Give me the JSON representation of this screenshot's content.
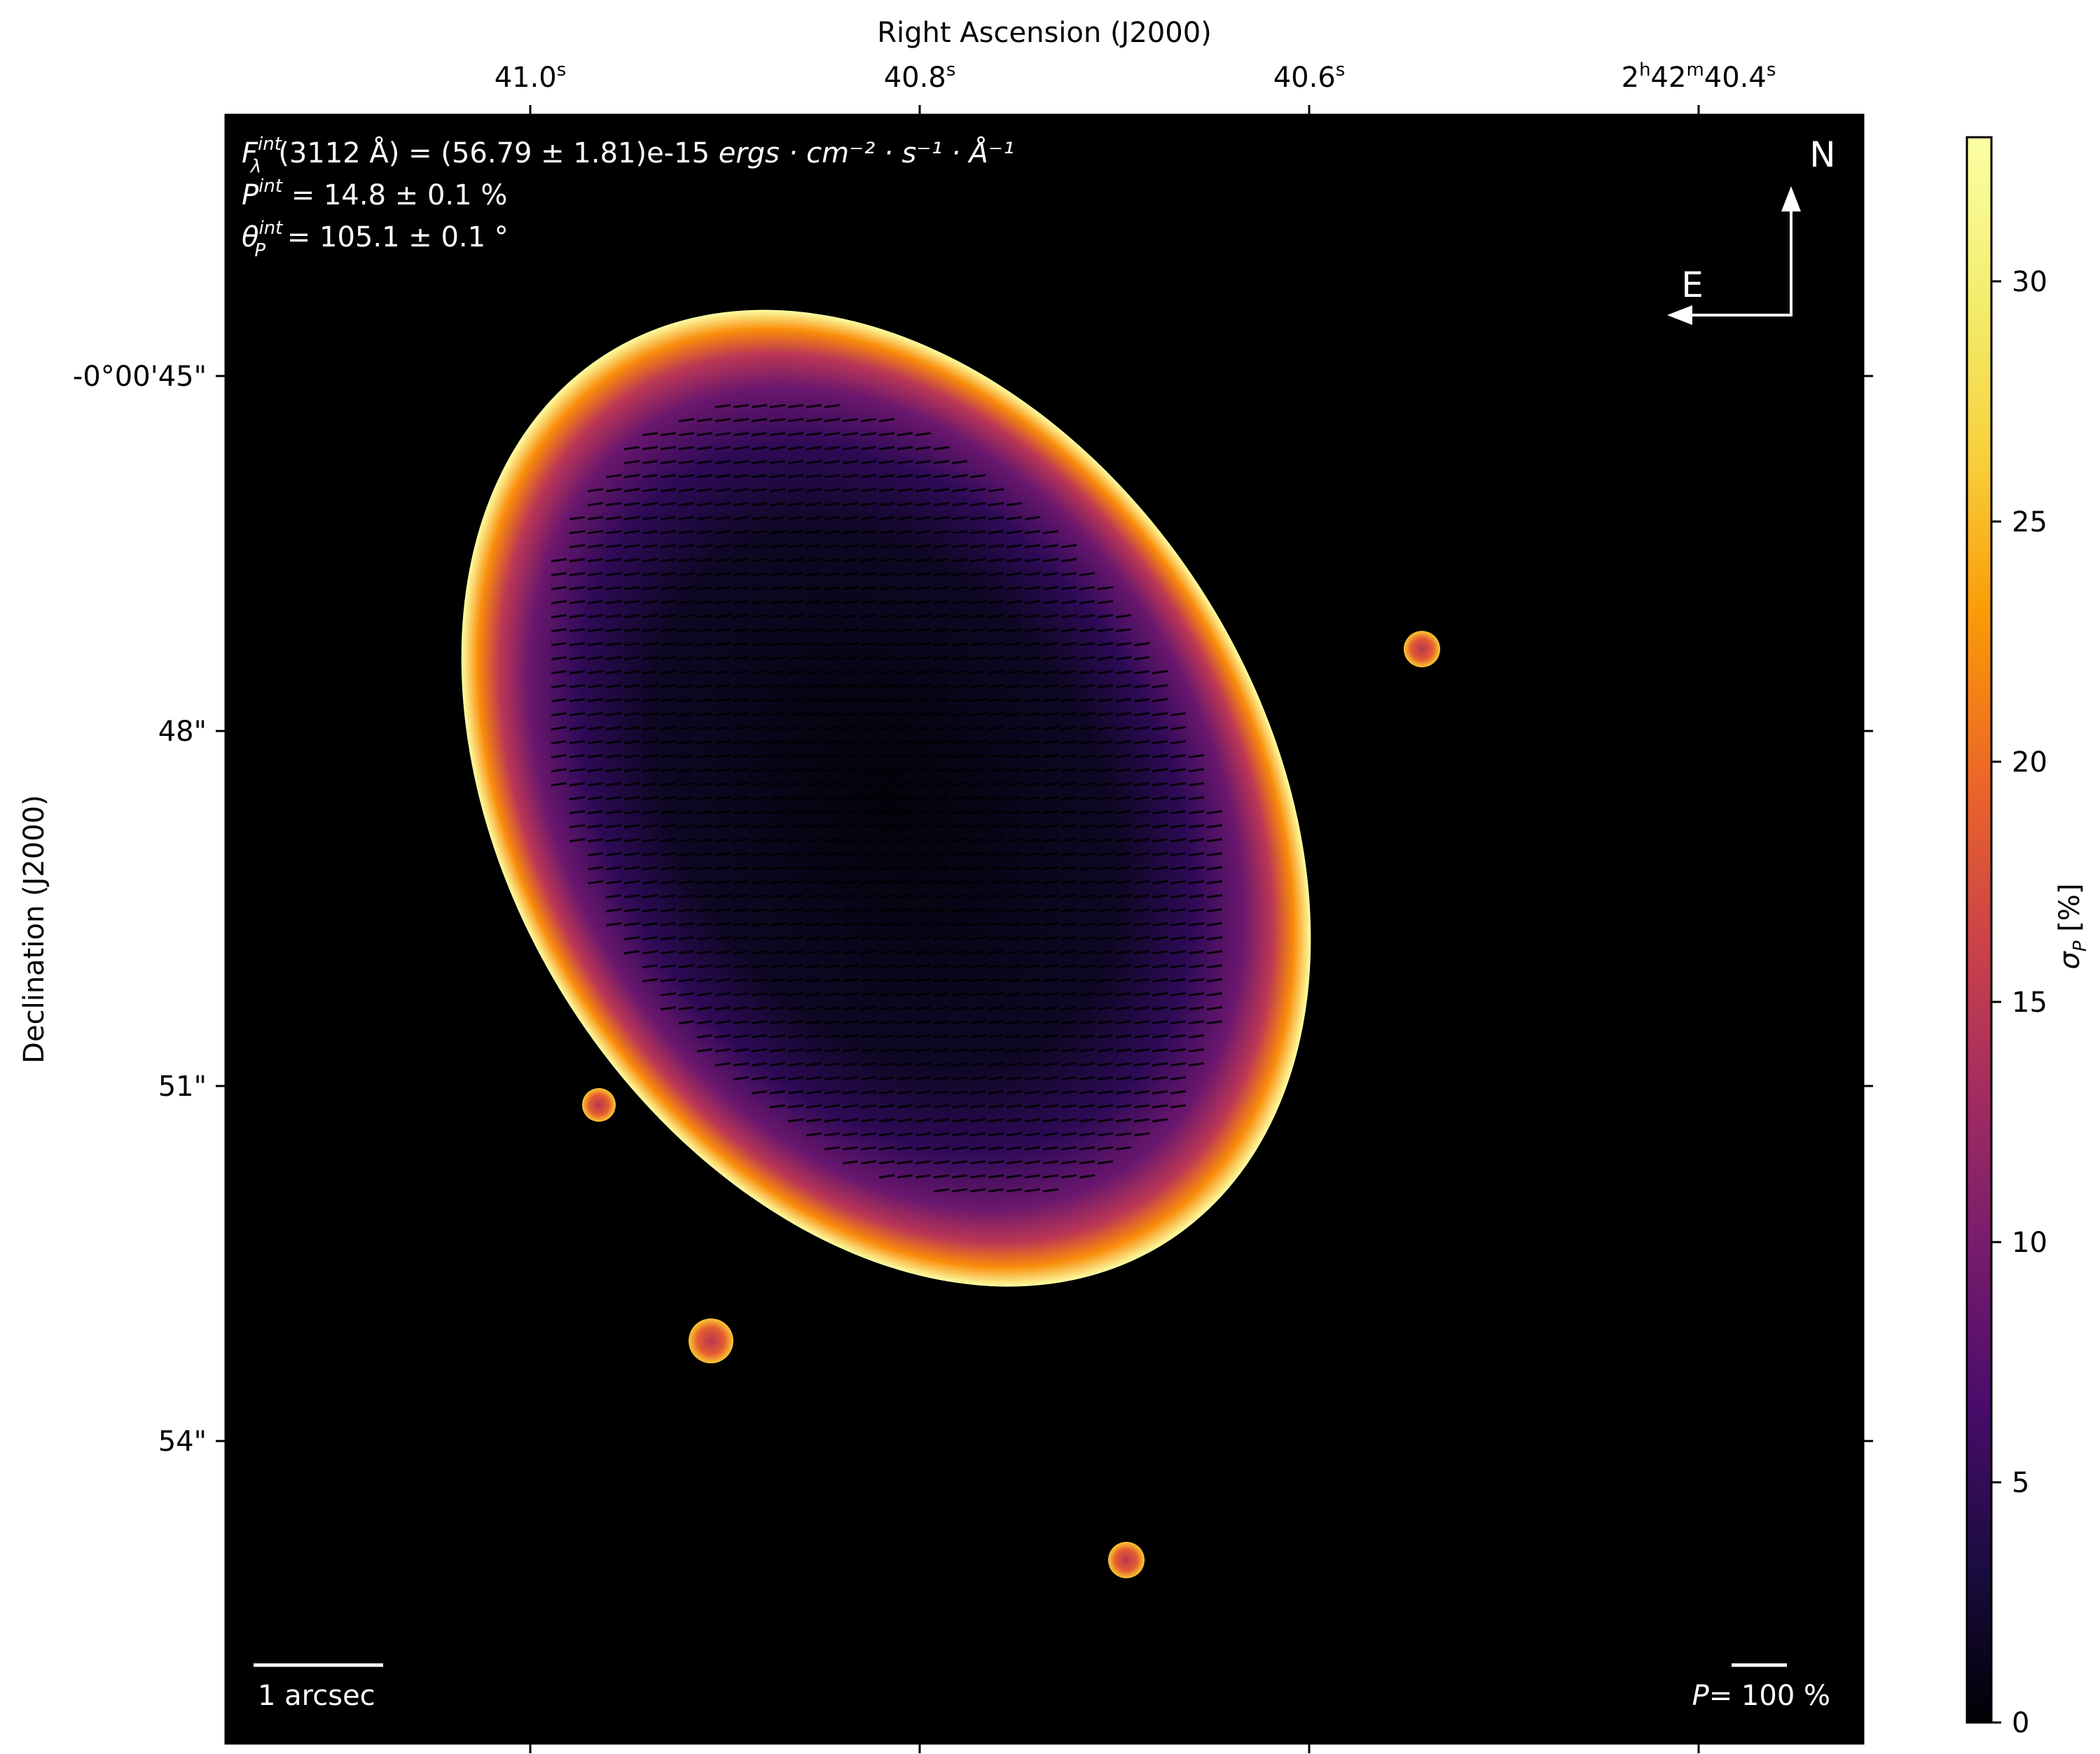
{
  "chart_data": {
    "type": "heatmap",
    "title": "",
    "xlabel": "Right Ascension (J2000)",
    "ylabel": "Declination (J2000)",
    "x_ticks": [
      {
        "value": 41.0,
        "main": "41.0",
        "sup": "s"
      },
      {
        "value": 40.8,
        "main": "40.8",
        "sup": "s"
      },
      {
        "value": 40.6,
        "main": "40.6",
        "sup": "s"
      },
      {
        "value": 40.4,
        "parts": [
          "2",
          "h",
          "42",
          "m",
          "40.4",
          "s"
        ]
      }
    ],
    "y_ticks": [
      {
        "value": 45,
        "label": "-0°00'45\""
      },
      {
        "value": 48,
        "label": "48\""
      },
      {
        "value": 51,
        "label": "51\""
      },
      {
        "value": 54,
        "label": "54\""
      }
    ],
    "annotations": {
      "flux": {
        "lead": "F",
        "sup": "int",
        "sub": "λ",
        "text": "(3112 Å) = (56.79 ± 1.81)e-15 ",
        "units": "ergs · cm⁻² · s⁻¹ · Å⁻¹"
      },
      "pol": {
        "lead": "P",
        "sup": "int",
        "text": " = 14.8 ± 0.1 %"
      },
      "angle": {
        "lead": "θ",
        "sup": "int",
        "sub": "P",
        "text": " = 105.1 ± 0.1 °"
      }
    },
    "compass": {
      "north": "N",
      "east": "E"
    },
    "scalebar_label": "1 arcsec",
    "pol_scale": {
      "lead": "P",
      "text": "= 100 %"
    },
    "colorbar": {
      "label": "σ",
      "label_sub": "P",
      "label_unit": " [%]",
      "colormap": "inferno",
      "range": [
        0,
        33
      ],
      "ticks": [
        0,
        5,
        10,
        15,
        20,
        25,
        30
      ]
    },
    "colors": {
      "background": "#000000",
      "text_on_image": "#ffffff"
    }
  }
}
